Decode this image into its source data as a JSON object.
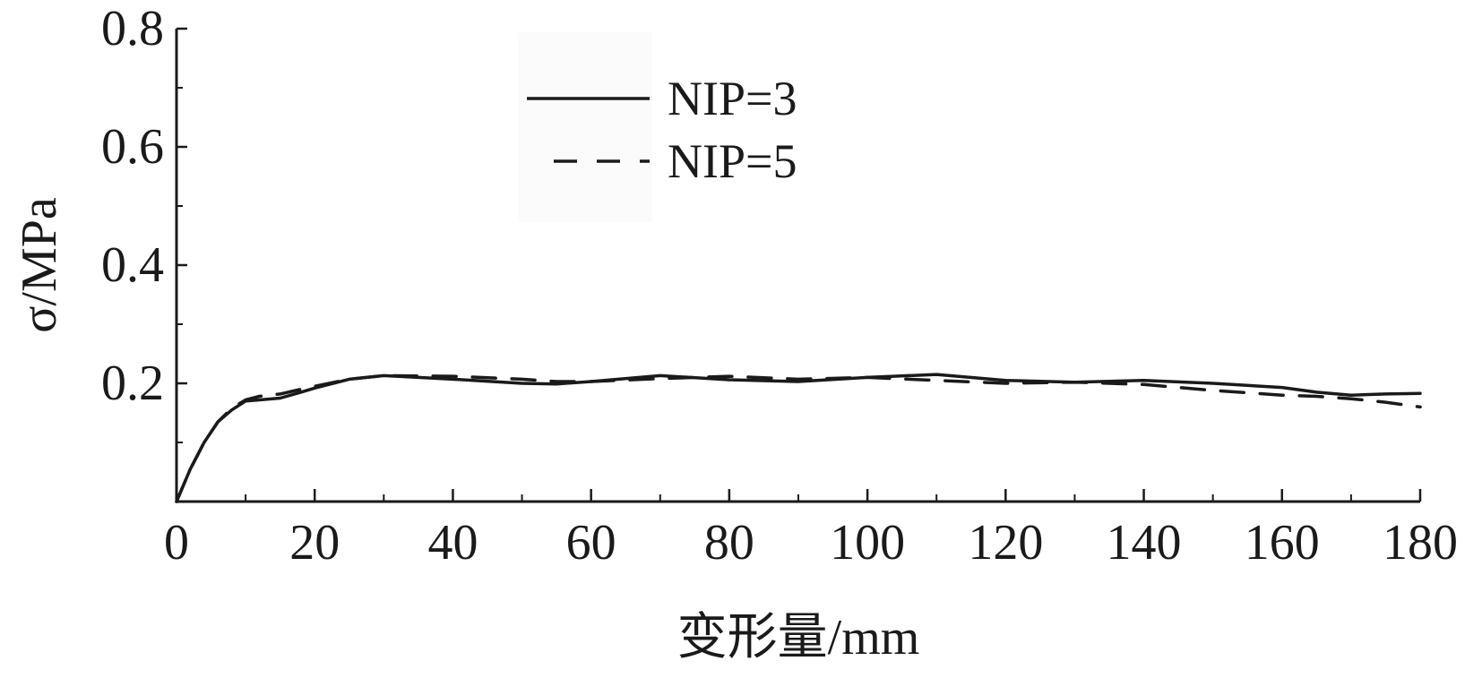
{
  "chart_data": {
    "type": "line",
    "xlabel": "变形量/mm",
    "ylabel": "σ/MPa",
    "xlim": [
      0,
      180
    ],
    "ylim": [
      0,
      0.8
    ],
    "xticks": [
      "0",
      "20",
      "40",
      "60",
      "80",
      "100",
      "120",
      "140",
      "160",
      "180"
    ],
    "xtick_values": [
      0,
      20,
      40,
      60,
      80,
      100,
      120,
      140,
      160,
      180
    ],
    "yticks": [
      "0.2",
      "0.4",
      "0.6",
      "0.8"
    ],
    "ytick_values": [
      0.2,
      0.4,
      0.6,
      0.8
    ],
    "grid": false,
    "legend_position": "top-center",
    "series": [
      {
        "name": "NIP=3",
        "style": "solid",
        "color": "#1a1a1a",
        "x": [
          0,
          2,
          4,
          6,
          8,
          10,
          12,
          15,
          18,
          20,
          25,
          30,
          40,
          50,
          55,
          60,
          70,
          80,
          90,
          100,
          110,
          120,
          130,
          140,
          150,
          160,
          165,
          170,
          175,
          180
        ],
        "y": [
          0.0,
          0.055,
          0.1,
          0.135,
          0.155,
          0.17,
          0.172,
          0.175,
          0.185,
          0.192,
          0.207,
          0.213,
          0.207,
          0.2,
          0.199,
          0.203,
          0.213,
          0.206,
          0.203,
          0.21,
          0.215,
          0.205,
          0.202,
          0.205,
          0.2,
          0.193,
          0.185,
          0.18,
          0.182,
          0.183
        ]
      },
      {
        "name": "NIP=5",
        "style": "dashed",
        "color": "#1a1a1a",
        "x": [
          0,
          2,
          4,
          6,
          8,
          10,
          12,
          15,
          18,
          20,
          25,
          30,
          40,
          50,
          55,
          60,
          70,
          80,
          90,
          100,
          110,
          120,
          130,
          140,
          150,
          160,
          165,
          170,
          175,
          180
        ],
        "y": [
          0.0,
          0.055,
          0.1,
          0.135,
          0.158,
          0.172,
          0.178,
          0.182,
          0.19,
          0.195,
          0.207,
          0.213,
          0.212,
          0.207,
          0.203,
          0.203,
          0.208,
          0.212,
          0.207,
          0.21,
          0.205,
          0.2,
          0.202,
          0.198,
          0.188,
          0.18,
          0.178,
          0.174,
          0.168,
          0.16
        ]
      }
    ]
  }
}
